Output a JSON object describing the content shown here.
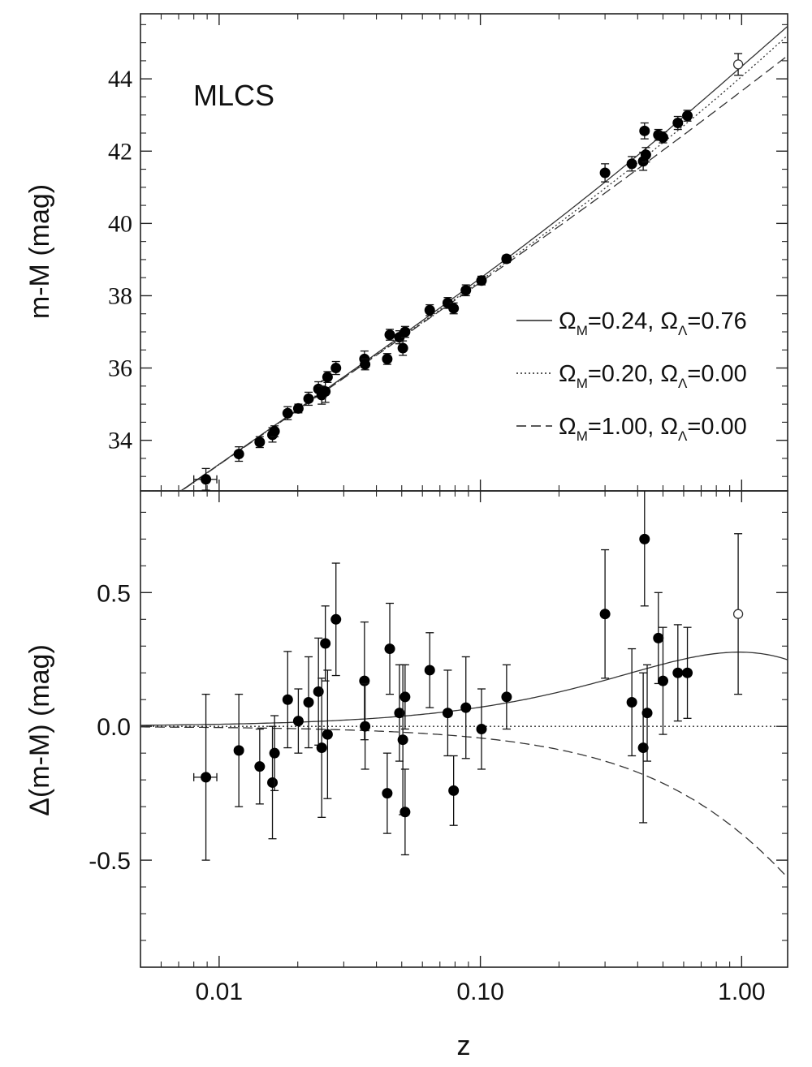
{
  "chart_data": [
    {
      "type": "scatter",
      "panel": "top",
      "annotation": "MLCS",
      "xlabel": "",
      "ylabel": "m-M (mag)",
      "xscale": "log",
      "xlim": [
        0.005,
        1.5
      ],
      "ylim": [
        32.6,
        45.8
      ],
      "yticks": [
        34,
        36,
        38,
        40,
        42,
        44
      ],
      "ytick_labels": [
        "34",
        "36",
        "38",
        "40",
        "42",
        "44"
      ],
      "legend_placement": "right",
      "legend": [
        {
          "line_style": "solid",
          "om_label": "Ω",
          "om_sub": "M",
          "om_value": "=0.24, ",
          "ol_label": "Ω",
          "ol_sub": "Λ",
          "ol_value": "=0.76"
        },
        {
          "line_style": "dotted",
          "om_label": "Ω",
          "om_sub": "M",
          "om_value": "=0.20, ",
          "ol_label": "Ω",
          "ol_sub": "Λ",
          "ol_value": "=0.00"
        },
        {
          "line_style": "dashed",
          "om_label": "Ω",
          "om_sub": "M",
          "om_value": "=1.00, ",
          "ol_label": "Ω",
          "ol_sub": "Λ",
          "ol_value": "=0.00"
        }
      ],
      "points": [
        {
          "z": 0.0089,
          "y": 32.92,
          "err": 0.3,
          "xerr": 0.0009
        },
        {
          "z": 0.0119,
          "y": 33.62,
          "err": 0.2
        },
        {
          "z": 0.0143,
          "y": 33.95,
          "err": 0.15
        },
        {
          "z": 0.016,
          "y": 34.15,
          "err": 0.2
        },
        {
          "z": 0.0163,
          "y": 34.25,
          "err": 0.15
        },
        {
          "z": 0.0183,
          "y": 34.75,
          "err": 0.18
        },
        {
          "z": 0.0201,
          "y": 34.88,
          "err": 0.12
        },
        {
          "z": 0.022,
          "y": 35.15,
          "err": 0.18
        },
        {
          "z": 0.024,
          "y": 35.42,
          "err": 0.2
        },
        {
          "z": 0.0247,
          "y": 35.25,
          "err": 0.25
        },
        {
          "z": 0.0255,
          "y": 35.35,
          "err": 0.3
        },
        {
          "z": 0.026,
          "y": 35.75,
          "err": 0.15
        },
        {
          "z": 0.028,
          "y": 36.0,
          "err": 0.18
        },
        {
          "z": 0.036,
          "y": 36.25,
          "err": 0.22
        },
        {
          "z": 0.0362,
          "y": 36.1,
          "err": 0.15
        },
        {
          "z": 0.044,
          "y": 36.25,
          "err": 0.15
        },
        {
          "z": 0.045,
          "y": 36.92,
          "err": 0.15
        },
        {
          "z": 0.049,
          "y": 36.85,
          "err": 0.18
        },
        {
          "z": 0.0505,
          "y": 36.55,
          "err": 0.2
        },
        {
          "z": 0.0515,
          "y": 37.0,
          "err": 0.15
        },
        {
          "z": 0.064,
          "y": 37.6,
          "err": 0.15
        },
        {
          "z": 0.075,
          "y": 37.8,
          "err": 0.15
        },
        {
          "z": 0.079,
          "y": 37.65,
          "err": 0.15
        },
        {
          "z": 0.088,
          "y": 38.15,
          "err": 0.15
        },
        {
          "z": 0.101,
          "y": 38.42,
          "err": 0.12
        },
        {
          "z": 0.126,
          "y": 39.02,
          "err": 0.1
        },
        {
          "z": 0.3,
          "y": 41.4,
          "err": 0.25
        },
        {
          "z": 0.38,
          "y": 41.65,
          "err": 0.2
        },
        {
          "z": 0.42,
          "y": 41.72,
          "err": 0.25
        },
        {
          "z": 0.425,
          "y": 42.56,
          "err": 0.22
        },
        {
          "z": 0.43,
          "y": 41.9,
          "err": 0.2
        },
        {
          "z": 0.48,
          "y": 42.45,
          "err": 0.15
        },
        {
          "z": 0.5,
          "y": 42.38,
          "err": 0.15
        },
        {
          "z": 0.57,
          "y": 42.78,
          "err": 0.18
        },
        {
          "z": 0.62,
          "y": 42.98,
          "err": 0.15
        },
        {
          "z": 0.97,
          "y": 44.4,
          "err": 0.3,
          "open": true
        }
      ]
    },
    {
      "type": "scatter",
      "panel": "bottom",
      "xlabel": "z",
      "ylabel": "Δ(m-M) (mag)",
      "xscale": "log",
      "xlim": [
        0.005,
        1.5
      ],
      "ylim": [
        -0.9,
        0.88
      ],
      "yticks": [
        -0.5,
        0.0,
        0.5
      ],
      "ytick_labels": [
        "-0.5",
        "0.0",
        "0.5"
      ],
      "xticks": [
        0.01,
        0.1,
        1.0
      ],
      "xtick_labels": [
        "0.01",
        "0.10",
        "1.00"
      ],
      "points": [
        {
          "z": 0.0089,
          "y": -0.19,
          "err": 0.31,
          "xerr": 0.0009
        },
        {
          "z": 0.0119,
          "y": -0.09,
          "err": 0.21
        },
        {
          "z": 0.0143,
          "y": -0.15,
          "err": 0.14
        },
        {
          "z": 0.016,
          "y": -0.21,
          "err": 0.21
        },
        {
          "z": 0.0163,
          "y": -0.1,
          "err": 0.14
        },
        {
          "z": 0.0183,
          "y": 0.1,
          "err": 0.18
        },
        {
          "z": 0.0201,
          "y": 0.02,
          "err": 0.12
        },
        {
          "z": 0.022,
          "y": 0.09,
          "err": 0.17
        },
        {
          "z": 0.024,
          "y": 0.13,
          "err": 0.2
        },
        {
          "z": 0.0247,
          "y": -0.08,
          "err": 0.26
        },
        {
          "z": 0.0255,
          "y": 0.31,
          "err": 0.14
        },
        {
          "z": 0.026,
          "y": -0.03,
          "err": 0.24
        },
        {
          "z": 0.028,
          "y": 0.4,
          "err": 0.21
        },
        {
          "z": 0.036,
          "y": 0.17,
          "err": 0.22
        },
        {
          "z": 0.0362,
          "y": 0.0,
          "err": 0.16
        },
        {
          "z": 0.044,
          "y": -0.25,
          "err": 0.15
        },
        {
          "z": 0.045,
          "y": 0.29,
          "err": 0.17
        },
        {
          "z": 0.049,
          "y": 0.05,
          "err": 0.18
        },
        {
          "z": 0.0505,
          "y": -0.05,
          "err": 0.28
        },
        {
          "z": 0.0515,
          "y": 0.11,
          "err": 0.12
        },
        {
          "z": 0.0515,
          "y": -0.32,
          "err": 0.16
        },
        {
          "z": 0.064,
          "y": 0.21,
          "err": 0.14
        },
        {
          "z": 0.075,
          "y": 0.05,
          "err": 0.16
        },
        {
          "z": 0.079,
          "y": -0.24,
          "err": 0.13
        },
        {
          "z": 0.088,
          "y": 0.07,
          "err": 0.19
        },
        {
          "z": 0.101,
          "y": -0.01,
          "err": 0.15
        },
        {
          "z": 0.126,
          "y": 0.11,
          "err": 0.12
        },
        {
          "z": 0.3,
          "y": 0.42,
          "err": 0.24
        },
        {
          "z": 0.38,
          "y": 0.09,
          "err": 0.2
        },
        {
          "z": 0.42,
          "y": -0.08,
          "err": 0.28
        },
        {
          "z": 0.425,
          "y": 0.7,
          "err": 0.25
        },
        {
          "z": 0.435,
          "y": 0.05,
          "err": 0.18
        },
        {
          "z": 0.48,
          "y": 0.33,
          "err": 0.17
        },
        {
          "z": 0.5,
          "y": 0.17,
          "err": 0.2
        },
        {
          "z": 0.57,
          "y": 0.2,
          "err": 0.18
        },
        {
          "z": 0.62,
          "y": 0.2,
          "err": 0.17
        },
        {
          "z": 0.97,
          "y": 0.42,
          "err": 0.3,
          "open": true
        }
      ]
    }
  ]
}
